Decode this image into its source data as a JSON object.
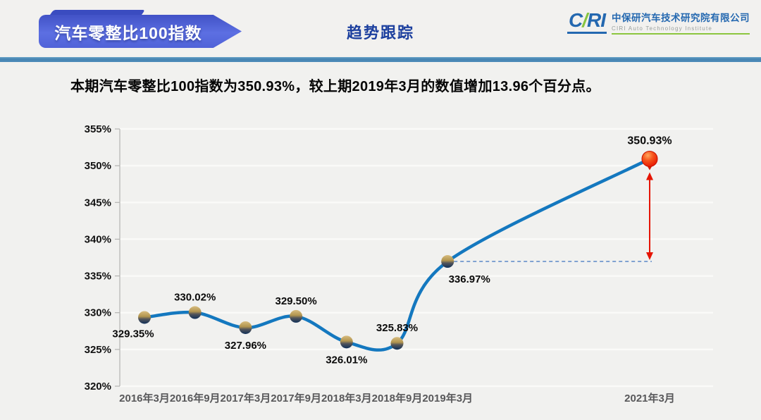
{
  "header": {
    "badge_label": "汽车零整比100指数",
    "section_title": "趋势跟踪",
    "logo": {
      "wordmark_c": "C",
      "wordmark_ri": "RI",
      "company_cn": "中保研汽车技术研究院有限公司",
      "company_en": "CIRI Auto Technology Institute"
    }
  },
  "subtitle": "本期汽车零整比100指数为350.93%，较上期2019年3月的数值增加13.96个百分点。",
  "colors": {
    "badge_blue": "#4a5ed2",
    "rule_blue": "#4d8bb9",
    "section_title_blue": "#1c3f9e",
    "logo_blue": "#2468b0",
    "logo_green": "#86c440",
    "line_blue": "#1478bf",
    "marker_gold": "#d4b572",
    "marker_navy": "#0f2f58",
    "last_point_red": "#e81d04",
    "arrow_red": "#e51400",
    "dashed_blue": "#5b87c7",
    "grid_line": "#fafaf8",
    "axis_gray": "#b3b3b1"
  },
  "chart_data": {
    "type": "line",
    "categories": [
      "2016年3月",
      "2016年9月",
      "2017年3月",
      "2017年9月",
      "2018年3月",
      "2018年9月",
      "2019年3月",
      "2021年3月"
    ],
    "values": [
      329.35,
      330.02,
      327.96,
      329.5,
      326.01,
      325.83,
      336.97,
      350.93
    ],
    "data_labels": [
      "329.35%",
      "330.02%",
      "327.96%",
      "329.50%",
      "326.01%",
      "325.83%",
      "336.97%",
      "350.93%"
    ],
    "x_units": [
      0,
      1,
      2,
      3,
      4,
      5,
      6,
      10
    ],
    "ylim": [
      320,
      355
    ],
    "ytick_step": 5,
    "ytick_labels": [
      "320%",
      "325%",
      "330%",
      "335%",
      "340%",
      "345%",
      "350%",
      "355%"
    ],
    "grid": true,
    "legend": false,
    "label_placement": [
      "below-left",
      "above",
      "below",
      "above",
      "below",
      "above",
      "below-right",
      "above-top"
    ],
    "annotations": {
      "dashed_baseline_from_category": "2019年3月",
      "dashed_baseline_value": 336.97,
      "change_arrow_at_category": "2021年3月",
      "change_arrow_between_values": [
        336.97,
        350.93
      ]
    }
  }
}
